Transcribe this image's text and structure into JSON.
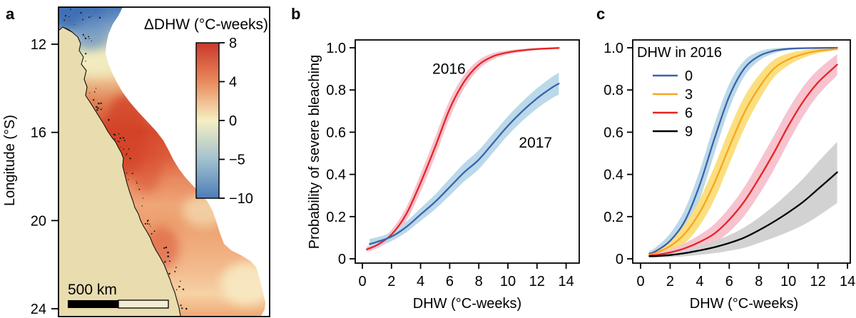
{
  "figure": {
    "background": "#ffffff",
    "panels": [
      {
        "label": "a"
      },
      {
        "label": "b"
      },
      {
        "label": "c"
      }
    ]
  },
  "chart_data": [
    {
      "panel": "a",
      "type": "heatmap",
      "title": "ΔDHW (°C-weeks)",
      "ylabel": "Longitude (°S)",
      "yticks": [
        12,
        16,
        20,
        24
      ],
      "colorbar": {
        "tick_labels": [
          "8",
          "4",
          "0",
          "−5",
          "−10"
        ],
        "values": [
          8,
          4,
          0,
          -5,
          -10
        ],
        "colors": [
          "#c9392b",
          "#e98a5d",
          "#f5efc2",
          "#a2c1cf",
          "#4c7db9"
        ]
      },
      "scalebar_label": "500 km",
      "land_color": "#e9dcae",
      "scalebar_open_fill": "#f3ecd2",
      "sea_gradient": [
        {
          "pos": 0.0,
          "color": "#4c79b7"
        },
        {
          "pos": 0.06,
          "color": "#7b9fc6"
        },
        {
          "pos": 0.13,
          "color": "#cfd6b9"
        },
        {
          "pos": 0.17,
          "color": "#f0e9bd"
        },
        {
          "pos": 0.24,
          "color": "#edbb8a"
        },
        {
          "pos": 0.31,
          "color": "#e07f52"
        },
        {
          "pos": 0.4,
          "color": "#d74b2f"
        },
        {
          "pos": 0.48,
          "color": "#dc5c3a"
        },
        {
          "pos": 0.56,
          "color": "#e88a60"
        },
        {
          "pos": 0.64,
          "color": "#efa678"
        },
        {
          "pos": 0.7,
          "color": "#eda06f"
        },
        {
          "pos": 0.78,
          "color": "#f0ad7e"
        },
        {
          "pos": 0.86,
          "color": "#f3bd90"
        },
        {
          "pos": 0.93,
          "color": "#f6d2a4"
        },
        {
          "pos": 1.0,
          "color": "#f0a977"
        }
      ]
    },
    {
      "panel": "b",
      "type": "line",
      "xlabel": "DHW (°C-weeks)",
      "ylabel": "Probability of severe bleaching",
      "xticks": [
        0,
        2,
        4,
        6,
        8,
        10,
        12,
        14
      ],
      "yticks": [
        0,
        0.2,
        0.4,
        0.6,
        0.8,
        1
      ],
      "ytick_labels": [
        "0",
        "0.2",
        "0.4",
        "0.6",
        "0.8",
        "1.0"
      ],
      "xlim": [
        0,
        14
      ],
      "ylim": [
        0,
        1
      ],
      "grid": false,
      "series": [
        {
          "name": "2016",
          "color": "#e62525",
          "band_color": "#f6c3cf",
          "x": [
            0.3,
            1,
            2,
            3,
            4,
            5,
            6,
            7,
            8,
            9,
            10,
            11,
            12,
            13.5
          ],
          "y": [
            0.045,
            0.065,
            0.115,
            0.21,
            0.36,
            0.53,
            0.71,
            0.84,
            0.92,
            0.96,
            0.978,
            0.988,
            0.994,
            0.999
          ],
          "hw": [
            0.013,
            0.016,
            0.022,
            0.032,
            0.042,
            0.046,
            0.042,
            0.032,
            0.022,
            0.015,
            0.01,
            0.007,
            0.005,
            0.004
          ]
        },
        {
          "name": "2017",
          "color": "#3f60ab",
          "band_color": "#bad9e9",
          "x": [
            0.5,
            1,
            2,
            3,
            4,
            5,
            6,
            7,
            8,
            9,
            10,
            11,
            12,
            13,
            13.5
          ],
          "y": [
            0.07,
            0.08,
            0.105,
            0.15,
            0.21,
            0.27,
            0.34,
            0.41,
            0.47,
            0.55,
            0.63,
            0.7,
            0.76,
            0.81,
            0.83
          ],
          "hw": [
            0.025,
            0.022,
            0.021,
            0.025,
            0.03,
            0.035,
            0.04,
            0.043,
            0.045,
            0.045,
            0.045,
            0.046,
            0.048,
            0.05,
            0.052
          ]
        }
      ],
      "annotations": [
        {
          "text": "2016",
          "x": 5.95,
          "y": 0.9
        },
        {
          "text": "2017",
          "x": 11.9,
          "y": 0.55
        }
      ]
    },
    {
      "panel": "c",
      "type": "line",
      "xlabel": "DHW (°C-weeks)",
      "ylabel": "",
      "xticks": [
        0,
        2,
        4,
        6,
        8,
        10,
        12,
        14
      ],
      "yticks": [
        0,
        0.2,
        0.4,
        0.6,
        0.8,
        1
      ],
      "ytick_labels": [
        "0",
        "0.2",
        "0.4",
        "0.6",
        "0.8",
        "1.0"
      ],
      "xlim": [
        0,
        14
      ],
      "ylim": [
        0,
        1
      ],
      "grid": false,
      "legend": {
        "title": "DHW in 2016",
        "entries": [
          {
            "label": "0",
            "color": "#3f60ab"
          },
          {
            "label": "3",
            "color": "#f9a51e"
          },
          {
            "label": "6",
            "color": "#e62525"
          },
          {
            "label": "9",
            "color": "#000000"
          }
        ]
      },
      "series": [
        {
          "name": "0",
          "color": "#3f60ab",
          "band_color": "#bad9e9",
          "x": [
            0.6,
            1,
            2,
            3,
            4,
            5,
            6,
            7,
            8,
            9,
            10,
            11,
            12,
            13.3
          ],
          "y": [
            0.025,
            0.035,
            0.085,
            0.18,
            0.35,
            0.57,
            0.77,
            0.9,
            0.96,
            0.985,
            0.995,
            0.998,
            0.999,
            1.0
          ],
          "hw": [
            0.012,
            0.018,
            0.035,
            0.055,
            0.068,
            0.07,
            0.058,
            0.038,
            0.022,
            0.012,
            0.006,
            0.004,
            0.003,
            0.002
          ]
        },
        {
          "name": "3",
          "color": "#f9a51e",
          "band_color": "#fbdf7f",
          "x": [
            0.6,
            1,
            2,
            3,
            4,
            5,
            6,
            7,
            8,
            9,
            10,
            11,
            12,
            13.3
          ],
          "y": [
            0.02,
            0.027,
            0.06,
            0.12,
            0.22,
            0.36,
            0.53,
            0.69,
            0.81,
            0.9,
            0.945,
            0.97,
            0.985,
            0.995
          ],
          "hw": [
            0.01,
            0.014,
            0.026,
            0.045,
            0.062,
            0.078,
            0.082,
            0.075,
            0.06,
            0.042,
            0.028,
            0.018,
            0.011,
            0.006
          ]
        },
        {
          "name": "6",
          "color": "#e62525",
          "band_color": "#f6c3cf",
          "x": [
            0.6,
            1,
            2,
            3,
            4,
            5,
            6,
            7,
            8,
            9,
            10,
            11,
            12,
            13.3
          ],
          "y": [
            0.015,
            0.018,
            0.03,
            0.05,
            0.08,
            0.12,
            0.185,
            0.27,
            0.38,
            0.5,
            0.63,
            0.745,
            0.835,
            0.92
          ],
          "hw": [
            0.008,
            0.01,
            0.016,
            0.024,
            0.034,
            0.045,
            0.057,
            0.068,
            0.077,
            0.08,
            0.078,
            0.07,
            0.06,
            0.05
          ]
        },
        {
          "name": "9",
          "color": "#000000",
          "band_color": "#d2d2d2",
          "x": [
            0.6,
            1,
            2,
            3,
            4,
            5,
            6,
            7,
            8,
            9,
            10,
            11,
            12,
            13.3
          ],
          "y": [
            0.012,
            0.013,
            0.018,
            0.027,
            0.04,
            0.055,
            0.075,
            0.1,
            0.135,
            0.175,
            0.22,
            0.27,
            0.33,
            0.41
          ],
          "hw": [
            0.006,
            0.007,
            0.01,
            0.015,
            0.021,
            0.028,
            0.037,
            0.048,
            0.06,
            0.075,
            0.092,
            0.11,
            0.128,
            0.145
          ]
        }
      ],
      "annotations": []
    }
  ]
}
